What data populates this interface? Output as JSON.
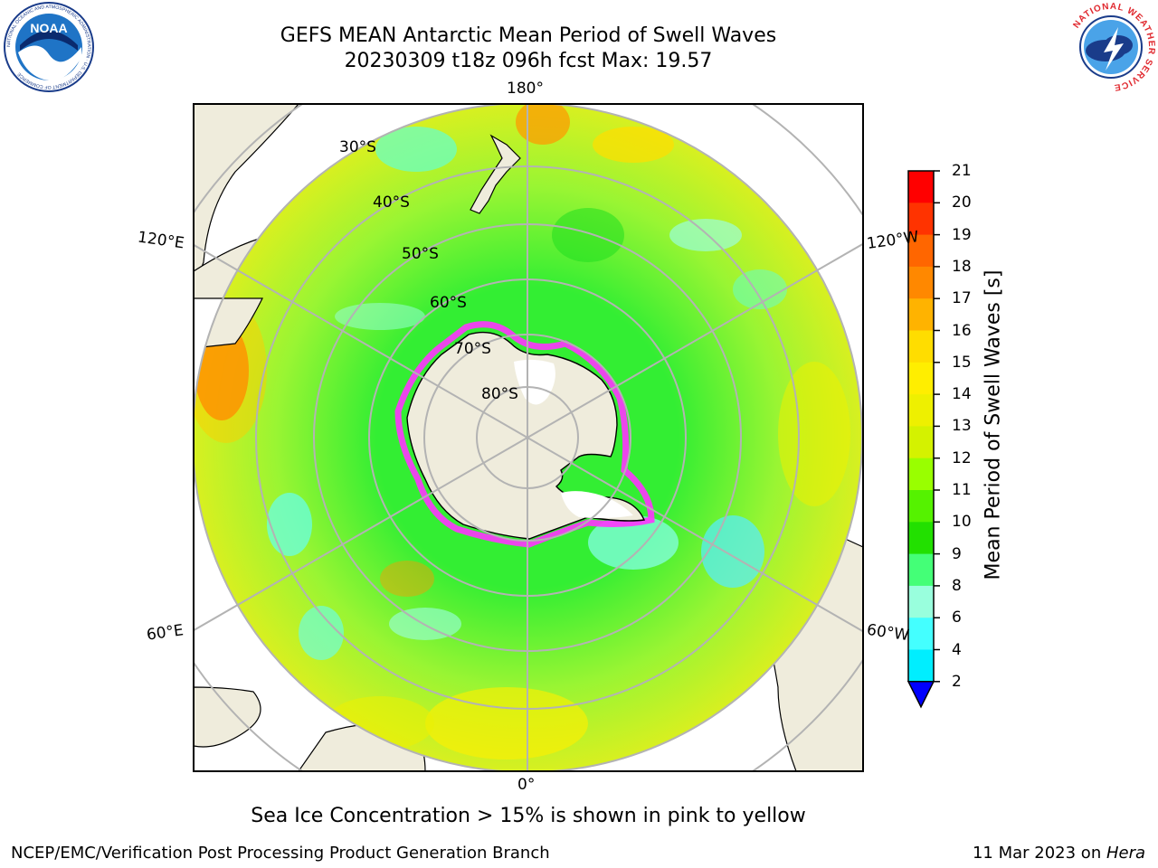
{
  "title": {
    "line1": "GEFS MEAN Antarctic Mean Period of Swell Waves",
    "line2": "20230309 t18z 096h fcst   Max: 19.57"
  },
  "logos": {
    "left": "NOAA",
    "left_ring_text": "NATIONAL OCEANIC AND ATMOSPHERIC ADMINISTRATION · U.S. DEPARTMENT OF COMMERCE",
    "right_ring_text": "NATIONAL WEATHER SERVICE"
  },
  "map": {
    "projection": "south-polar-stereographic",
    "longitude_labels": {
      "top": "180°",
      "bottom": "0°",
      "upper_left": "120°E",
      "upper_right": "120°W",
      "lower_left": "60°E",
      "lower_right": "60°W"
    },
    "latitude_labels": [
      "30°S",
      "40°S",
      "50°S",
      "60°S",
      "70°S",
      "80°S"
    ],
    "colors": {
      "land": "#efecdc",
      "ice_edge": "#ff33ff",
      "graticule": "#b3b3b3"
    }
  },
  "colorbar": {
    "label": "Mean Period of Swell Waves [s]",
    "ticks": [
      "21",
      "20",
      "19",
      "18",
      "17",
      "16",
      "15",
      "14",
      "13",
      "12",
      "11",
      "10",
      "9",
      "8",
      "6",
      "4",
      "2"
    ],
    "colors_top_to_bottom": [
      "#ff0000",
      "#ff3300",
      "#ff6600",
      "#ff8800",
      "#ffb300",
      "#ffdd00",
      "#ffee00",
      "#eef000",
      "#d4f200",
      "#99ff00",
      "#55f200",
      "#22e000",
      "#44ff77",
      "#99ffdd",
      "#44ffff",
      "#00eeff",
      "#0099ff",
      "#0000ff"
    ]
  },
  "footer": {
    "note": "Sea Ice Concentration > 15% is shown in pink to yellow",
    "left": "NCEP/EMC/Verification Post Processing Product Generation Branch",
    "right_date": "11 Mar 2023 on ",
    "right_host": "Hera"
  }
}
